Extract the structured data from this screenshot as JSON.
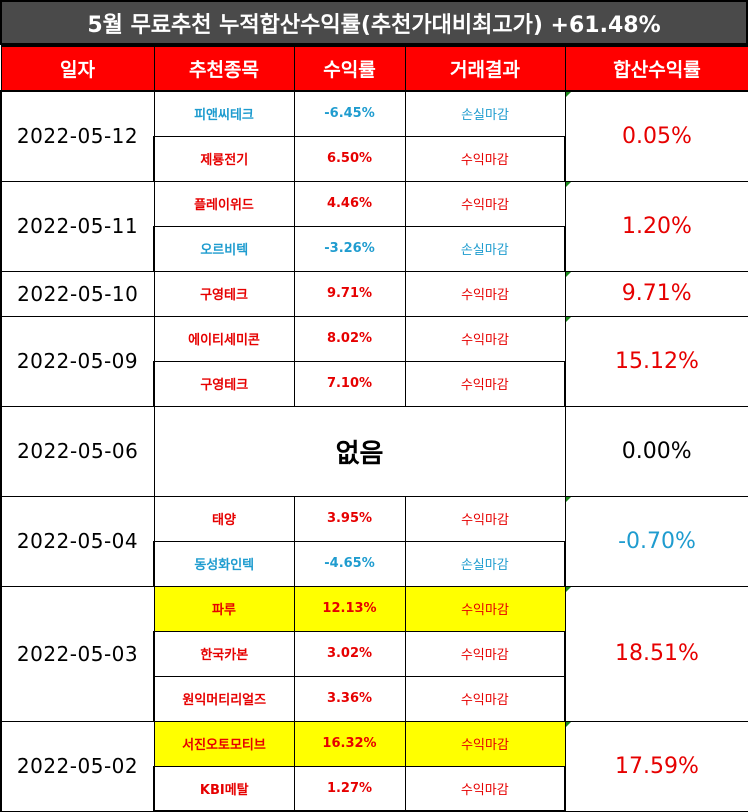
{
  "title": "5월 무료추천 누적합산수익률(추천가대비최고가) +61.48%",
  "headers": {
    "date": "일자",
    "stock": "추천종목",
    "rate": "수익률",
    "result": "거래결과",
    "total": "합산수익률"
  },
  "colors": {
    "header_bg": "#ff0000",
    "title_bg": "#4a4a4a",
    "profit": "#e60000",
    "loss": "#1f9ccf",
    "highlight": "#ffff00"
  },
  "groups": [
    {
      "date": "2022-05-12",
      "total": "0.05%",
      "total_color": "red",
      "rows": [
        {
          "name": "피앤씨테크",
          "rate": "-6.45%",
          "result": "손실마감",
          "color": "blue",
          "highlight": false
        },
        {
          "name": "제룡전기",
          "rate": "6.50%",
          "result": "수익마감",
          "color": "red",
          "highlight": false
        }
      ]
    },
    {
      "date": "2022-05-11",
      "total": "1.20%",
      "total_color": "red",
      "rows": [
        {
          "name": "플레이위드",
          "rate": "4.46%",
          "result": "수익마감",
          "color": "red",
          "highlight": false
        },
        {
          "name": "오르비텍",
          "rate": "-3.26%",
          "result": "손실마감",
          "color": "blue",
          "highlight": false
        }
      ]
    },
    {
      "date": "2022-05-10",
      "total": "9.71%",
      "total_color": "red",
      "rows": [
        {
          "name": "구영테크",
          "rate": "9.71%",
          "result": "수익마감",
          "color": "red",
          "highlight": false
        }
      ]
    },
    {
      "date": "2022-05-09",
      "total": "15.12%",
      "total_color": "red",
      "rows": [
        {
          "name": "에이티세미콘",
          "rate": "8.02%",
          "result": "수익마감",
          "color": "red",
          "highlight": false
        },
        {
          "name": "구영테크",
          "rate": "7.10%",
          "result": "수익마감",
          "color": "red",
          "highlight": false
        }
      ]
    },
    {
      "date": "2022-05-06",
      "total": "0.00%",
      "total_color": "black",
      "none_text": "없음",
      "rows": []
    },
    {
      "date": "2022-05-04",
      "total": "-0.70%",
      "total_color": "blue",
      "rows": [
        {
          "name": "태양",
          "rate": "3.95%",
          "result": "수익마감",
          "color": "red",
          "highlight": false
        },
        {
          "name": "동성화인텍",
          "rate": "-4.65%",
          "result": "손실마감",
          "color": "blue",
          "highlight": false
        }
      ]
    },
    {
      "date": "2022-05-03",
      "total": "18.51%",
      "total_color": "red",
      "rows": [
        {
          "name": "파루",
          "rate": "12.13%",
          "result": "수익마감",
          "color": "red",
          "highlight": true
        },
        {
          "name": "한국카본",
          "rate": "3.02%",
          "result": "수익마감",
          "color": "red",
          "highlight": false
        },
        {
          "name": "원익머티리얼즈",
          "rate": "3.36%",
          "result": "수익마감",
          "color": "red",
          "highlight": false
        }
      ]
    },
    {
      "date": "2022-05-02",
      "total": "17.59%",
      "total_color": "red",
      "rows": [
        {
          "name": "서진오토모티브",
          "rate": "16.32%",
          "result": "수익마감",
          "color": "red",
          "highlight": true
        },
        {
          "name": "KBI메탈",
          "rate": "1.27%",
          "result": "수익마감",
          "color": "red",
          "highlight": false
        }
      ]
    }
  ]
}
